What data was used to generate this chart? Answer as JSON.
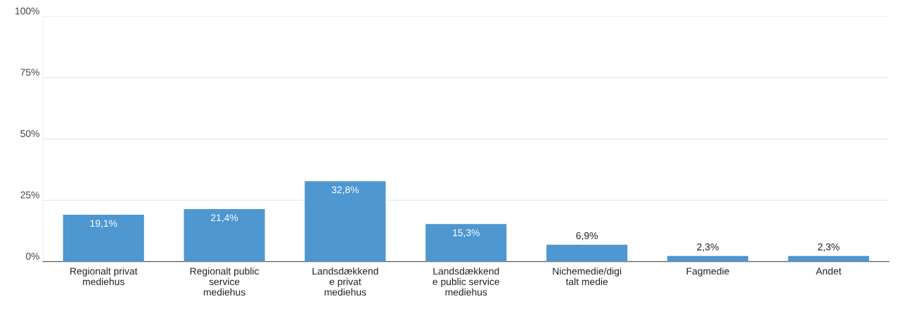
{
  "chart_data": {
    "type": "bar",
    "categories": [
      "Regionalt privat\nmediehus",
      "Regionalt public\nservice\nmediehus",
      "Landsdækkend\ne privat\nmediehus",
      "Landsdækkend\ne public service\nmediehus",
      "Nichemedie/digi\ntalt medie",
      "Fagmedie",
      "Andet"
    ],
    "values": [
      19.1,
      21.4,
      32.8,
      15.3,
      6.9,
      2.3,
      2.3
    ],
    "value_labels": [
      "19,1%",
      "21,4%",
      "32,8%",
      "15,3%",
      "6,9%",
      "2,3%",
      "2,3%"
    ],
    "color": "#4e97d1",
    "ylim": [
      0,
      100
    ],
    "yticks": [
      {
        "value": 0,
        "label": "0%"
      },
      {
        "value": 25,
        "label": "25%"
      },
      {
        "value": 50,
        "label": "50%"
      },
      {
        "value": 75,
        "label": "75%"
      },
      {
        "value": 100,
        "label": "100%"
      }
    ],
    "grid": "y"
  }
}
